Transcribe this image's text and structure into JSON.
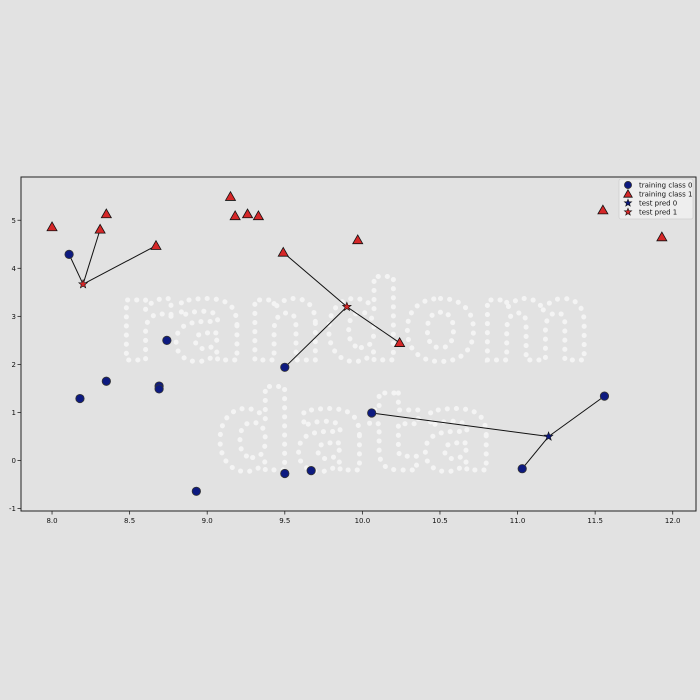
{
  "chart_data": {
    "type": "scatter",
    "title": "",
    "xlabel": "",
    "ylabel": "",
    "xlim": [
      7.8,
      12.15
    ],
    "ylim": [
      -1.05,
      5.9
    ],
    "xticks": [
      8.0,
      8.5,
      9.0,
      9.5,
      10.0,
      10.5,
      11.0,
      11.5,
      12.0
    ],
    "xtick_labels": [
      "8.0",
      "8.5",
      "9.0",
      "9.5",
      "10.0",
      "10.5",
      "11.0",
      "11.5",
      "12.0"
    ],
    "yticks": [
      -1,
      0,
      1,
      2,
      3,
      4,
      5
    ],
    "ytick_labels": [
      "-1",
      "0",
      "1",
      "2",
      "3",
      "4",
      "5"
    ],
    "grid": false,
    "legend_position": "top-right",
    "series": [
      {
        "name": "training class 0",
        "marker": "circle",
        "color": "#0d1a80",
        "points": [
          [
            8.11,
            4.29
          ],
          [
            8.18,
            1.29
          ],
          [
            8.35,
            1.65
          ],
          [
            8.69,
            1.55
          ],
          [
            8.69,
            1.49
          ],
          [
            8.74,
            2.5
          ],
          [
            8.93,
            -0.64
          ],
          [
            9.5,
            1.94
          ],
          [
            9.5,
            -0.27
          ],
          [
            9.67,
            -0.21
          ],
          [
            10.06,
            0.99
          ],
          [
            11.03,
            -0.17
          ],
          [
            11.56,
            1.34
          ]
        ]
      },
      {
        "name": "training class 1",
        "marker": "triangle",
        "color": "#d62728",
        "points": [
          [
            8.0,
            4.86
          ],
          [
            8.31,
            4.81
          ],
          [
            8.35,
            5.13
          ],
          [
            8.67,
            4.47
          ],
          [
            9.15,
            5.49
          ],
          [
            9.18,
            5.09
          ],
          [
            9.26,
            5.13
          ],
          [
            9.33,
            5.09
          ],
          [
            9.49,
            4.33
          ],
          [
            9.97,
            4.59
          ],
          [
            10.24,
            2.45
          ],
          [
            11.55,
            5.21
          ],
          [
            11.93,
            4.65
          ]
        ]
      },
      {
        "name": "test pred 0",
        "marker": "star",
        "color": "#0d1a80",
        "points": [
          [
            11.2,
            0.5
          ]
        ]
      },
      {
        "name": "test pred 1",
        "marker": "star",
        "color": "#d62728",
        "points": [
          [
            8.2,
            3.67
          ],
          [
            9.9,
            3.2
          ]
        ]
      }
    ],
    "neighbor_links": [
      {
        "from": [
          8.2,
          3.67
        ],
        "to": [
          [
            8.11,
            4.29
          ],
          [
            8.31,
            4.81
          ],
          [
            8.67,
            4.47
          ]
        ]
      },
      {
        "from": [
          9.9,
          3.2
        ],
        "to": [
          [
            9.49,
            4.33
          ],
          [
            9.5,
            1.94
          ],
          [
            10.24,
            2.45
          ]
        ]
      },
      {
        "from": [
          11.2,
          0.5
        ],
        "to": [
          [
            10.06,
            0.99
          ],
          [
            11.03,
            -0.17
          ],
          [
            11.56,
            1.34
          ]
        ]
      }
    ],
    "watermark": [
      "random",
      "data"
    ]
  }
}
